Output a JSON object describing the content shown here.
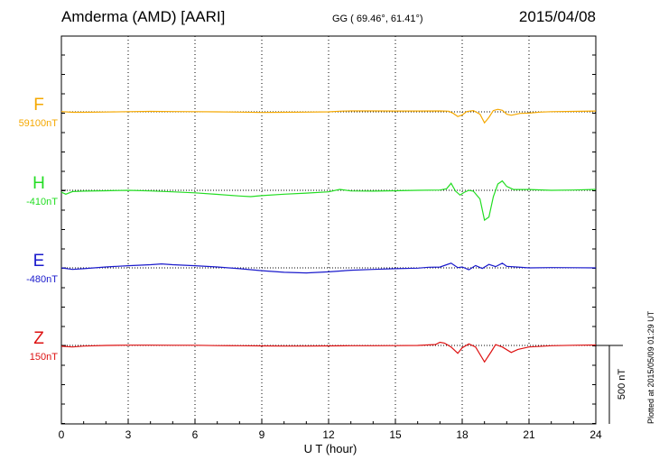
{
  "header": {
    "station": "Amderma (AMD)  [AARI]",
    "coords": "GG ( 69.46°,  61.41°)",
    "date": "2015/04/08"
  },
  "plotted_note": "Plotted at 2015/05/09 01:29 UT",
  "chart_data": {
    "type": "line",
    "xlabel": "U T (hour)",
    "xlim": [
      0,
      24
    ],
    "xticks": [
      "0",
      "3",
      "6",
      "9",
      "12",
      "15",
      "18",
      "21",
      "24"
    ],
    "grid": "dotted vertical every 3 hours",
    "scale_bar_label": "500 nT",
    "series": [
      {
        "name": "F",
        "baseline_label": "59100nT",
        "color": "#f5a800",
        "points": [
          [
            0,
            2
          ],
          [
            0.5,
            -3
          ],
          [
            1,
            -3
          ],
          [
            2,
            -1
          ],
          [
            3,
            1
          ],
          [
            4,
            3
          ],
          [
            5,
            2
          ],
          [
            6,
            1
          ],
          [
            7,
            0
          ],
          [
            8,
            -2
          ],
          [
            9,
            -4
          ],
          [
            10,
            -3
          ],
          [
            11,
            -2
          ],
          [
            12,
            0
          ],
          [
            12.5,
            4
          ],
          [
            13,
            6
          ],
          [
            14,
            6
          ],
          [
            15,
            5
          ],
          [
            16,
            5
          ],
          [
            17,
            6
          ],
          [
            17.4,
            4
          ],
          [
            17.6,
            -10
          ],
          [
            17.8,
            -30
          ],
          [
            18,
            -20
          ],
          [
            18.2,
            2
          ],
          [
            18.5,
            8
          ],
          [
            18.8,
            -15
          ],
          [
            19,
            -70
          ],
          [
            19.2,
            -35
          ],
          [
            19.4,
            8
          ],
          [
            19.6,
            16
          ],
          [
            19.8,
            10
          ],
          [
            20,
            -15
          ],
          [
            20.2,
            -22
          ],
          [
            20.6,
            -10
          ],
          [
            21,
            -8
          ],
          [
            21.5,
            -2
          ],
          [
            22,
            1
          ],
          [
            23,
            3
          ],
          [
            24,
            5
          ]
        ]
      },
      {
        "name": "H",
        "baseline_label": "-410nT",
        "color": "#22dd22",
        "points": [
          [
            0,
            -12
          ],
          [
            0.2,
            -25
          ],
          [
            0.5,
            -8
          ],
          [
            1,
            -5
          ],
          [
            2,
            -3
          ],
          [
            3,
            0
          ],
          [
            4,
            -4
          ],
          [
            5,
            -10
          ],
          [
            6,
            -16
          ],
          [
            7,
            -26
          ],
          [
            8,
            -36
          ],
          [
            8.5,
            -40
          ],
          [
            9,
            -34
          ],
          [
            10,
            -25
          ],
          [
            11,
            -18
          ],
          [
            12,
            -10
          ],
          [
            12.5,
            6
          ],
          [
            13,
            -4
          ],
          [
            14,
            -5
          ],
          [
            15,
            -3
          ],
          [
            16,
            0
          ],
          [
            17,
            2
          ],
          [
            17.3,
            10
          ],
          [
            17.5,
            45
          ],
          [
            17.7,
            -5
          ],
          [
            17.9,
            -30
          ],
          [
            18.1,
            -12
          ],
          [
            18.3,
            0
          ],
          [
            18.5,
            -5
          ],
          [
            18.8,
            -55
          ],
          [
            19,
            -190
          ],
          [
            19.2,
            -170
          ],
          [
            19.4,
            -40
          ],
          [
            19.6,
            40
          ],
          [
            19.8,
            60
          ],
          [
            20,
            25
          ],
          [
            20.3,
            5
          ],
          [
            21,
            5
          ],
          [
            22,
            0
          ],
          [
            23,
            2
          ],
          [
            24,
            6
          ]
        ]
      },
      {
        "name": "E",
        "baseline_label": "-480nT",
        "color": "#1a1acc",
        "points": [
          [
            0,
            0
          ],
          [
            0.5,
            -10
          ],
          [
            1,
            -5
          ],
          [
            2,
            6
          ],
          [
            3,
            14
          ],
          [
            4,
            20
          ],
          [
            4.5,
            25
          ],
          [
            5,
            20
          ],
          [
            6,
            14
          ],
          [
            7,
            6
          ],
          [
            8,
            -5
          ],
          [
            9,
            -18
          ],
          [
            10,
            -28
          ],
          [
            11,
            -32
          ],
          [
            12,
            -25
          ],
          [
            13,
            -15
          ],
          [
            14,
            -10
          ],
          [
            15,
            -5
          ],
          [
            16,
            -2
          ],
          [
            16.5,
            4
          ],
          [
            17,
            5
          ],
          [
            17.3,
            20
          ],
          [
            17.5,
            30
          ],
          [
            17.8,
            2
          ],
          [
            18,
            6
          ],
          [
            18.3,
            -12
          ],
          [
            18.6,
            15
          ],
          [
            18.9,
            -4
          ],
          [
            19.2,
            22
          ],
          [
            19.5,
            8
          ],
          [
            19.8,
            30
          ],
          [
            20,
            10
          ],
          [
            20.5,
            5
          ],
          [
            21,
            0
          ],
          [
            22,
            2
          ],
          [
            23,
            1
          ],
          [
            24,
            0
          ]
        ]
      },
      {
        "name": "Z",
        "baseline_label": "150nT",
        "color": "#dd1111",
        "points": [
          [
            0,
            -5
          ],
          [
            0.5,
            -10
          ],
          [
            1,
            -4
          ],
          [
            2,
            0
          ],
          [
            3,
            2
          ],
          [
            4,
            2
          ],
          [
            5,
            1
          ],
          [
            6,
            1
          ],
          [
            7,
            -1
          ],
          [
            8,
            -2
          ],
          [
            9,
            -3
          ],
          [
            10,
            -4
          ],
          [
            11,
            -4
          ],
          [
            12,
            -3
          ],
          [
            13,
            -2
          ],
          [
            14,
            -2
          ],
          [
            15,
            -1
          ],
          [
            16,
            0
          ],
          [
            16.8,
            6
          ],
          [
            17,
            20
          ],
          [
            17.2,
            15
          ],
          [
            17.5,
            -10
          ],
          [
            17.8,
            -50
          ],
          [
            18,
            -15
          ],
          [
            18.3,
            10
          ],
          [
            18.6,
            -10
          ],
          [
            19,
            -105
          ],
          [
            19.3,
            -40
          ],
          [
            19.5,
            5
          ],
          [
            19.8,
            -10
          ],
          [
            20.2,
            -45
          ],
          [
            20.5,
            -25
          ],
          [
            21,
            -10
          ],
          [
            22,
            -2
          ],
          [
            23,
            1
          ],
          [
            24,
            3
          ]
        ]
      }
    ]
  }
}
